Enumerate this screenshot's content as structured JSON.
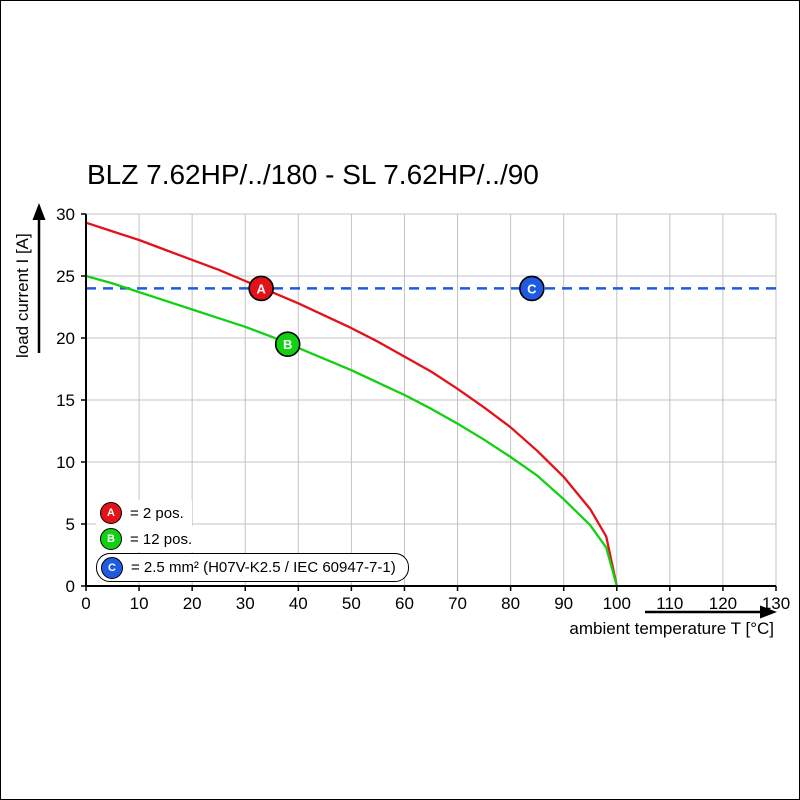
{
  "chart_data": {
    "type": "line",
    "title": "BLZ 7.62HP/../180 - SL 7.62HP/../90",
    "xlabel": "ambient temperature T [°C]",
    "ylabel": "load current I [A]",
    "xlim": [
      0,
      130
    ],
    "ylim": [
      0,
      30
    ],
    "x_ticks": [
      0,
      10,
      20,
      30,
      40,
      50,
      60,
      70,
      80,
      90,
      100,
      110,
      120,
      130
    ],
    "y_ticks": [
      0,
      5,
      10,
      15,
      20,
      25,
      30
    ],
    "grid": true,
    "legend_position": "bottom-left inside plot",
    "colors": {
      "grid": "#c3c3c3",
      "axis": "#000000",
      "background": "#ffffff"
    },
    "series": [
      {
        "name": "A",
        "legend_label": "= 2 pos.",
        "color": "#e31219",
        "style": "solid",
        "points": [
          [
            0,
            29.3
          ],
          [
            5,
            28.6
          ],
          [
            10,
            27.9
          ],
          [
            15,
            27.1
          ],
          [
            20,
            26.3
          ],
          [
            25,
            25.5
          ],
          [
            30,
            24.6
          ],
          [
            35,
            23.7
          ],
          [
            40,
            22.8
          ],
          [
            45,
            21.8
          ],
          [
            50,
            20.8
          ],
          [
            55,
            19.7
          ],
          [
            60,
            18.5
          ],
          [
            65,
            17.3
          ],
          [
            70,
            15.9
          ],
          [
            75,
            14.4
          ],
          [
            80,
            12.8
          ],
          [
            85,
            10.9
          ],
          [
            90,
            8.8
          ],
          [
            95,
            6.2
          ],
          [
            98,
            4.0
          ],
          [
            100,
            0
          ]
        ],
        "marker": {
          "x": 33,
          "y": 24
        }
      },
      {
        "name": "B",
        "legend_label": "= 12 pos.",
        "color": "#12d012",
        "style": "solid",
        "points": [
          [
            0,
            25.0
          ],
          [
            5,
            24.4
          ],
          [
            10,
            23.7
          ],
          [
            15,
            23.0
          ],
          [
            20,
            22.3
          ],
          [
            25,
            21.6
          ],
          [
            30,
            20.9
          ],
          [
            35,
            20.1
          ],
          [
            40,
            19.2
          ],
          [
            45,
            18.3
          ],
          [
            50,
            17.4
          ],
          [
            55,
            16.4
          ],
          [
            60,
            15.4
          ],
          [
            65,
            14.3
          ],
          [
            70,
            13.1
          ],
          [
            75,
            11.8
          ],
          [
            80,
            10.4
          ],
          [
            85,
            8.9
          ],
          [
            90,
            7.0
          ],
          [
            95,
            4.9
          ],
          [
            98,
            3.1
          ],
          [
            100,
            0
          ]
        ],
        "marker": {
          "x": 38,
          "y": 19.5
        }
      },
      {
        "name": "C",
        "legend_label": "= 2.5 mm² (H07V-K2.5 / IEC 60947-7-1)",
        "color": "#1f5be1",
        "style": "dashed-hline",
        "y": 24,
        "marker": {
          "x": 84,
          "y": 24
        }
      }
    ]
  }
}
